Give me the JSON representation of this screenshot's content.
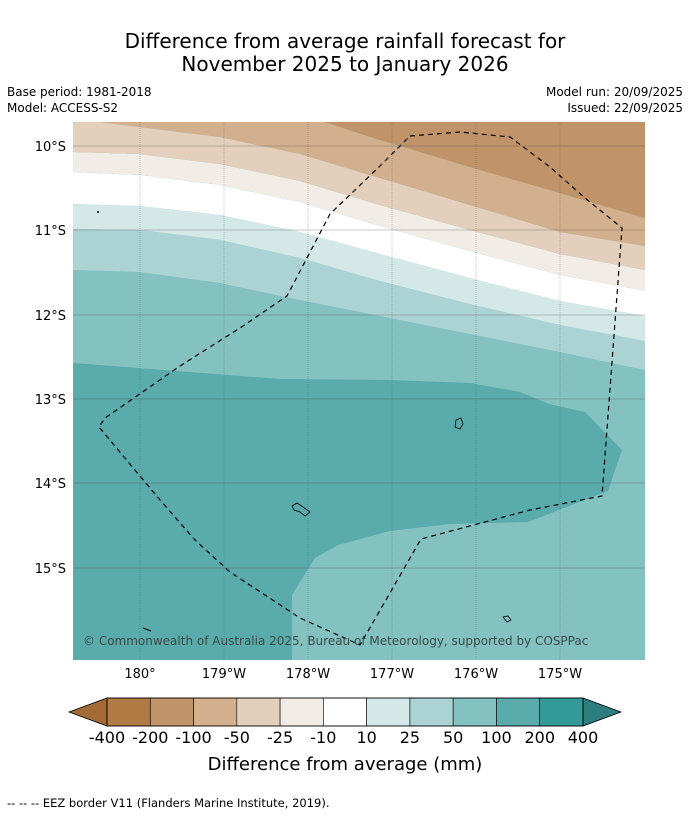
{
  "title": {
    "line1": "Difference from average rainfall forecast for",
    "line2": "November 2025 to January 2026"
  },
  "meta": {
    "base_period": "Base period: 1981-2018",
    "model": "Model: ACCESS-S2",
    "model_run": "Model run: 20/09/2025",
    "issued": "Issued: 22/09/2025"
  },
  "map": {
    "lat_labels": [
      "10°S",
      "11°S",
      "12°S",
      "13°S",
      "14°S",
      "15°S"
    ],
    "lon_labels": [
      "180°",
      "179°W",
      "178°W",
      "177°W",
      "176°W",
      "175°W"
    ],
    "copyright": "© Commonwealth of Australia 2025, Bureau of Meteorology, supported by COSPPac"
  },
  "legend": {
    "title": "Difference from average (mm)",
    "ticks": [
      "-400",
      "-200",
      "-100",
      "-50",
      "-25",
      "-10",
      "10",
      "25",
      "50",
      "100",
      "200",
      "400"
    ],
    "colors": [
      "#a36a35",
      "#b07a43",
      "#c09369",
      "#d2b08d",
      "#e3cfbc",
      "#f1ece5",
      "#ffffff",
      "#d4e8e8",
      "#acd3d4",
      "#84c1c1",
      "#5aabac",
      "#339a9a",
      "#2c7e7e"
    ]
  },
  "footnote": "--  --  -- EEZ border V11 (Flanders Marine Institute, 2019)."
}
